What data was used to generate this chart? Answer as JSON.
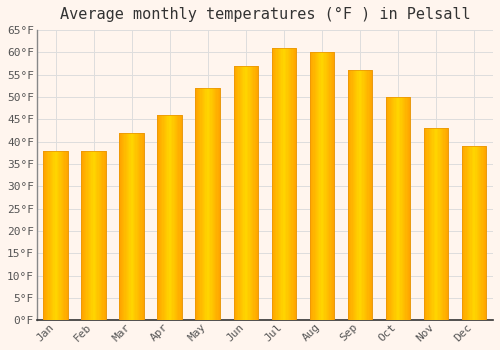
{
  "title": "Average monthly temperatures (°F ) in Pelsall",
  "months": [
    "Jan",
    "Feb",
    "Mar",
    "Apr",
    "May",
    "Jun",
    "Jul",
    "Aug",
    "Sep",
    "Oct",
    "Nov",
    "Dec"
  ],
  "values": [
    38,
    38,
    42,
    46,
    52,
    57,
    61,
    60,
    56,
    50,
    43,
    39
  ],
  "bar_color_main": "#FFA500",
  "bar_color_light": "#FFD700",
  "bar_color_edge": "#E8940A",
  "ylim": [
    0,
    65
  ],
  "yticks": [
    0,
    5,
    10,
    15,
    20,
    25,
    30,
    35,
    40,
    45,
    50,
    55,
    60,
    65
  ],
  "background_color": "#FFF5EE",
  "plot_bg_color": "#FFF5EE",
  "grid_color": "#DDDDDD",
  "title_fontsize": 11,
  "tick_fontsize": 8,
  "font_family": "monospace"
}
